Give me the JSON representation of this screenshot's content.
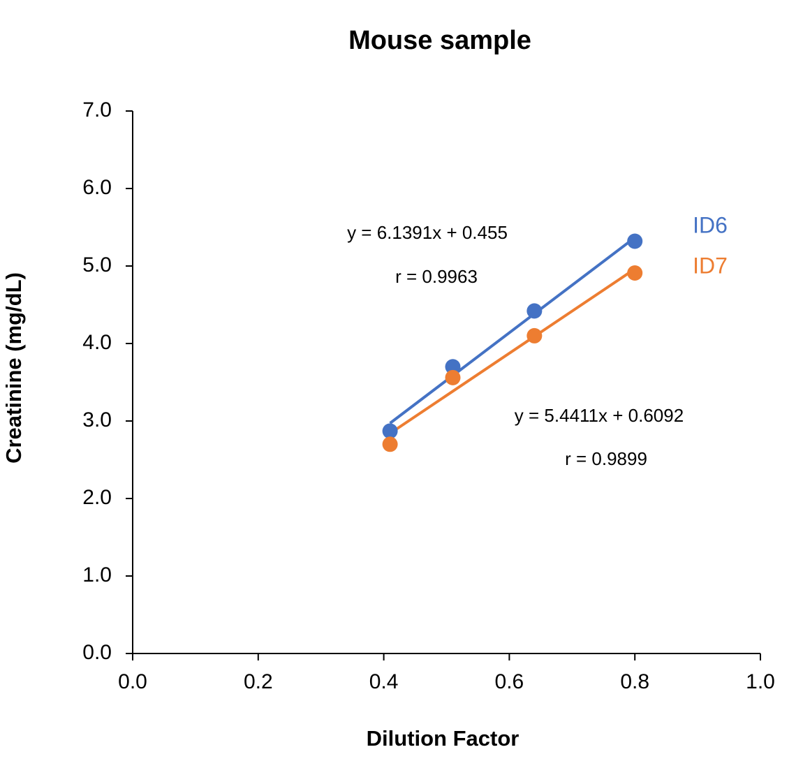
{
  "chart_data": {
    "type": "scatter",
    "title": "Mouse sample",
    "x_label": "Dilution Factor",
    "y_label": "Creatinine (mg/dL)",
    "xlim": [
      0,
      1
    ],
    "ylim": [
      0,
      7
    ],
    "xticks": [
      {
        "value": 0,
        "label": "0.0"
      },
      {
        "value": 0.2,
        "label": "0.2"
      },
      {
        "value": 0.4,
        "label": "0.4"
      },
      {
        "value": 0.6,
        "label": "0.6"
      },
      {
        "value": 0.8,
        "label": "0.8"
      },
      {
        "value": 1,
        "label": "1.0"
      }
    ],
    "yticks": [
      {
        "value": 0,
        "label": "0.0"
      },
      {
        "value": 1,
        "label": "1.0"
      },
      {
        "value": 2,
        "label": "2.0"
      },
      {
        "value": 3,
        "label": "3.0"
      },
      {
        "value": 4,
        "label": "4.0"
      },
      {
        "value": 5,
        "label": "5.0"
      },
      {
        "value": 6,
        "label": "6.0"
      },
      {
        "value": 7,
        "label": "7.0"
      }
    ],
    "series": [
      {
        "name": "ID6",
        "color": "#4472c4",
        "x": [
          0.41,
          0.51,
          0.64,
          0.8
        ],
        "values": [
          2.87,
          3.7,
          4.42,
          5.32
        ],
        "trendline": {
          "slope": 6.1391,
          "intercept": 0.455,
          "equation": "y = 6.1391x + 0.455",
          "r_label": "r = 0.9963"
        }
      },
      {
        "name": "ID7",
        "color": "#ed7d31",
        "x": [
          0.41,
          0.51,
          0.64,
          0.8
        ],
        "values": [
          2.7,
          3.56,
          4.1,
          4.91
        ],
        "trendline": {
          "slope": 5.4411,
          "intercept": 0.6092,
          "equation": "y = 5.4411x + 0.6092",
          "r_label": "r = 0.9899"
        }
      }
    ]
  }
}
